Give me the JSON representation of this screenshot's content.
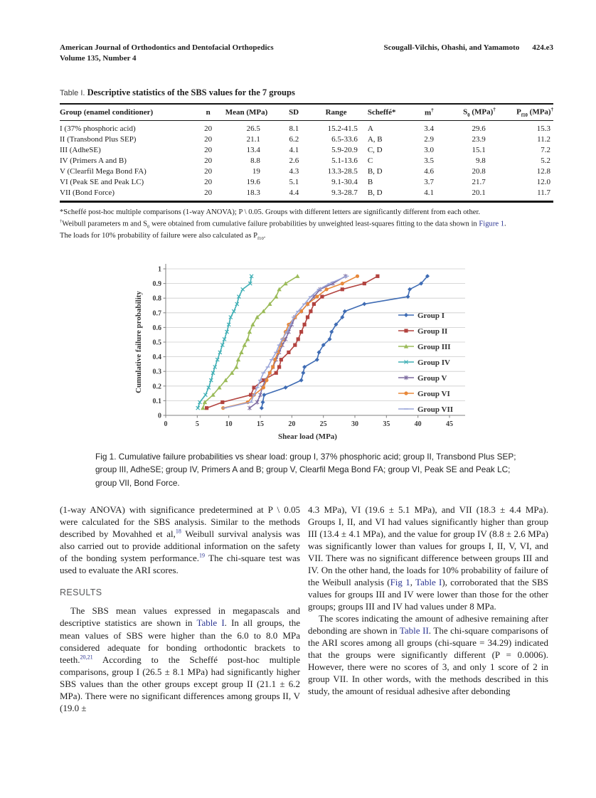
{
  "colors": {
    "link": "#2c3592",
    "text": "#1d1d1d"
  },
  "page_header": {
    "journal_line1": "American Journal of Orthodontics and Dentofacial Orthopedics",
    "journal_line2": "Volume 135, Number 4",
    "authors": "Scougall-Vilchis, Ohashi, and Yamamoto",
    "page_number": "424.e3"
  },
  "table": {
    "label": "Table I.",
    "title": "Descriptive statistics of the SBS values for the 7 groups",
    "columns": [
      [
        {
          "t": "text",
          "s": "Group (enamel conditioner)"
        }
      ],
      [
        {
          "t": "text",
          "s": "n"
        }
      ],
      [
        {
          "t": "text",
          "s": "Mean (MPa)"
        }
      ],
      [
        {
          "t": "text",
          "s": "SD"
        }
      ],
      [
        {
          "t": "text",
          "s": "Range"
        }
      ],
      [
        {
          "t": "text",
          "s": "Scheffé*"
        }
      ],
      [
        {
          "t": "text",
          "s": "m"
        },
        {
          "t": "sup",
          "s": "†"
        }
      ],
      [
        {
          "t": "text",
          "s": "S"
        },
        {
          "t": "sub",
          "s": "0"
        },
        {
          "t": "text",
          "s": " (MPa)"
        },
        {
          "t": "sup",
          "s": "†"
        }
      ],
      [
        {
          "t": "text",
          "s": "P"
        },
        {
          "t": "sub",
          "s": "f10"
        },
        {
          "t": "text",
          "s": " (MPa)"
        },
        {
          "t": "sup",
          "s": "†"
        }
      ]
    ],
    "rows": [
      [
        "I (37% phosphoric acid)",
        "20",
        "26.5",
        "8.1",
        "15.2-41.5",
        "A",
        "3.4",
        "29.6",
        "15.3"
      ],
      [
        "II (Transbond Plus SEP)",
        "20",
        "21.1",
        "6.2",
        "6.5-33.6",
        "A, B",
        "2.9",
        "23.9",
        "11.2"
      ],
      [
        "III (AdheSE)",
        "20",
        "13.4",
        "4.1",
        "5.9-20.9",
        "C, D",
        "3.0",
        "15.1",
        "7.2"
      ],
      [
        "IV (Primers A and B)",
        "20",
        "8.8",
        "2.6",
        "5.1-13.6",
        "C",
        "3.5",
        "9.8",
        "5.2"
      ],
      [
        "V (Clearfil Mega Bond FA)",
        "20",
        "19",
        "4.3",
        "13.3-28.5",
        "B, D",
        "4.6",
        "20.8",
        "12.8"
      ],
      [
        "VI (Peak SE and Peak LC)",
        "20",
        "19.6",
        "5.1",
        "9.1-30.4",
        "B",
        "3.7",
        "21.7",
        "12.0"
      ],
      [
        "VII (Bond Force)",
        "20",
        "18.3",
        "4.4",
        "9.3-28.7",
        "B, D",
        "4.1",
        "20.1",
        "11.7"
      ]
    ],
    "footnotes": [
      [
        {
          "t": "text",
          "s": "*Scheffé post-hoc multiple comparisons (1-way ANOVA); P \\ 0.05. Groups with different letters are significantly different from each other."
        }
      ],
      [
        {
          "t": "sup",
          "s": "†"
        },
        {
          "t": "text",
          "s": "Weibull parameters m and S"
        },
        {
          "t": "sub",
          "s": "0"
        },
        {
          "t": "text",
          "s": " were obtained from cumulative failure probabilities by unweighted least-squares fitting to the data shown in "
        },
        {
          "t": "link",
          "s": "Figure 1"
        },
        {
          "t": "text",
          "s": "."
        }
      ],
      [
        {
          "t": "text",
          "s": "The loads for 10% probability of failure were also calculated as P"
        },
        {
          "t": "sub",
          "s": "f10"
        },
        {
          "t": "text",
          "s": "."
        }
      ]
    ]
  },
  "figure": {
    "caption": "Fig 1.  Cumulative failure probabilities vs shear load: group I, 37% phosphoric acid; group II, Transbond Plus SEP; group III, AdheSE; group IV, Primers A and B; group V, Clearfil Mega Bond FA; group VI, Peak SE and Peak LC; group VII, Bond Force."
  },
  "chart_data": {
    "type": "line",
    "title": "",
    "xlabel": "Shear load (MPa)",
    "ylabel": "Cumulative failure probability",
    "xlim": [
      0,
      45
    ],
    "ylim": [
      0,
      1
    ],
    "x_ticks": [
      0,
      5,
      10,
      15,
      20,
      25,
      30,
      35,
      40,
      45
    ],
    "y_ticks": [
      0,
      0.1,
      0.2,
      0.3,
      0.4,
      0.5,
      0.6,
      0.7,
      0.8,
      0.9,
      1
    ],
    "grid": "horizontal",
    "legend_position": "right-inside",
    "y_probabilities": [
      0.05,
      0.09,
      0.14,
      0.19,
      0.24,
      0.29,
      0.33,
      0.38,
      0.43,
      0.48,
      0.52,
      0.57,
      0.62,
      0.67,
      0.71,
      0.76,
      0.81,
      0.86,
      0.9,
      0.95
    ],
    "series": [
      {
        "name": "Group I",
        "color": "#3f6cb4",
        "marker": "diamond",
        "x": [
          15.2,
          15.4,
          15.6,
          19,
          21.5,
          21.8,
          22,
          24,
          24.3,
          25,
          26,
          26.3,
          27,
          28,
          28.4,
          31.5,
          38.4,
          38.7,
          40.5,
          41.5
        ]
      },
      {
        "name": "Group II",
        "color": "#b2433f",
        "marker": "square",
        "x": [
          6.5,
          9,
          13.5,
          14,
          15.5,
          17.5,
          18,
          18.3,
          19.5,
          20.5,
          21,
          21.5,
          22,
          22.5,
          23,
          23.5,
          24.8,
          28,
          31.5,
          33.6
        ]
      },
      {
        "name": "Group III",
        "color": "#9bbb59",
        "marker": "triangle",
        "x": [
          5.9,
          6.2,
          7.5,
          8.5,
          9.5,
          10.5,
          11.2,
          11.5,
          12,
          12.5,
          13,
          13.3,
          13.8,
          14.5,
          15.5,
          16.5,
          17.5,
          18,
          19,
          20.9
        ]
      },
      {
        "name": "Group IV",
        "color": "#3fafb5",
        "marker": "x",
        "x": [
          5.1,
          5.4,
          6.3,
          6.8,
          7.2,
          7.5,
          7.8,
          8.2,
          8.6,
          9,
          9.3,
          9.7,
          10,
          10.3,
          10.8,
          11.3,
          11.6,
          12.2,
          13.4,
          13.6
        ]
      },
      {
        "name": "Group V",
        "color": "#7d6ba0",
        "marker": "asterisk",
        "x": [
          13.3,
          14.5,
          15,
          15.3,
          15.8,
          16.5,
          17,
          17.5,
          18,
          18.5,
          19,
          19.5,
          20,
          20.5,
          21.5,
          22.5,
          23.5,
          24.5,
          26.5,
          28.5
        ]
      },
      {
        "name": "Group VI",
        "color": "#e8883a",
        "marker": "circle",
        "x": [
          9.1,
          13,
          14,
          15.5,
          16,
          16.5,
          17,
          17.3,
          17.8,
          18.2,
          18.6,
          19,
          19.5,
          20.5,
          21.5,
          22.5,
          24,
          25.5,
          28,
          30.4
        ]
      },
      {
        "name": "Group VII",
        "color": "#9aa5d8",
        "marker": "dash",
        "x": [
          9.3,
          13.5,
          14,
          14.5,
          15,
          15.5,
          16.2,
          16.8,
          17.5,
          18,
          18.5,
          19.2,
          19.8,
          20.3,
          21,
          22,
          23,
          24.3,
          26,
          28.7
        ]
      }
    ]
  },
  "body": {
    "left": {
      "para1": [
        {
          "t": "text",
          "s": "(1-way ANOVA) with significance predetermined at P \\ 0.05 were calculated for the SBS analysis. Similar to the methods described by Movahhed et al,"
        },
        {
          "t": "supref",
          "s": "18"
        },
        {
          "t": "text",
          "s": " Weibull survival analysis was also carried out to provide additional information on the safety of the bonding system performance."
        },
        {
          "t": "supref",
          "s": "19"
        },
        {
          "t": "text",
          "s": " The chi-square test was used to evaluate the ARI scores."
        }
      ],
      "results_heading": "RESULTS",
      "para2": [
        {
          "t": "text",
          "s": "The SBS mean values expressed in megapascals and descriptive statistics are shown in "
        },
        {
          "t": "link",
          "s": "Table I"
        },
        {
          "t": "text",
          "s": ". In all groups, the mean values of SBS were higher than the 6.0 to 8.0 MPa considered adequate for bonding orthodontic brackets to teeth."
        },
        {
          "t": "supref",
          "s": "20,21"
        },
        {
          "t": "text",
          "s": " According to the Scheffé post-hoc multiple comparisons, group I (26.5 ± 8.1 MPa) had significantly higher SBS values than the other groups except group II (21.1 ± 6.2 MPa). There were no significant differences among groups II, V (19.0 ±"
        }
      ]
    },
    "right": {
      "para1": [
        {
          "t": "text",
          "s": "4.3 MPa), VI (19.6 ± 5.1 MPa), and VII (18.3 ± 4.4 MPa). Groups I, II, and VI had values significantly higher than group III (13.4 ± 4.1 MPa), and the value for group IV (8.8 ± 2.6 MPa) was significantly lower than values for groups I, II, V, VI, and VII. There was no significant difference between groups III and IV. On the other hand, the loads for 10% probability of failure of the Weibull analysis ("
        },
        {
          "t": "link",
          "s": "Fig 1"
        },
        {
          "t": "text",
          "s": ", "
        },
        {
          "t": "link",
          "s": "Table I"
        },
        {
          "t": "text",
          "s": "), corroborated that the SBS values for groups III and IV were lower than those for the other groups; groups III and IV had values under 8 MPa."
        }
      ],
      "para2": [
        {
          "t": "text",
          "s": "The scores indicating the amount of adhesive remaining after debonding are shown in "
        },
        {
          "t": "link",
          "s": "Table II"
        },
        {
          "t": "text",
          "s": ". The chi-square comparisons of the ARI scores among all groups (chi-square = 34.29) indicated that the groups were significantly different (P = 0.0006). However, there were no scores of 3, and only 1 score of 2 in group VII. In other words, with the methods described in this study, the amount of residual adhesive after debonding"
        }
      ]
    }
  }
}
